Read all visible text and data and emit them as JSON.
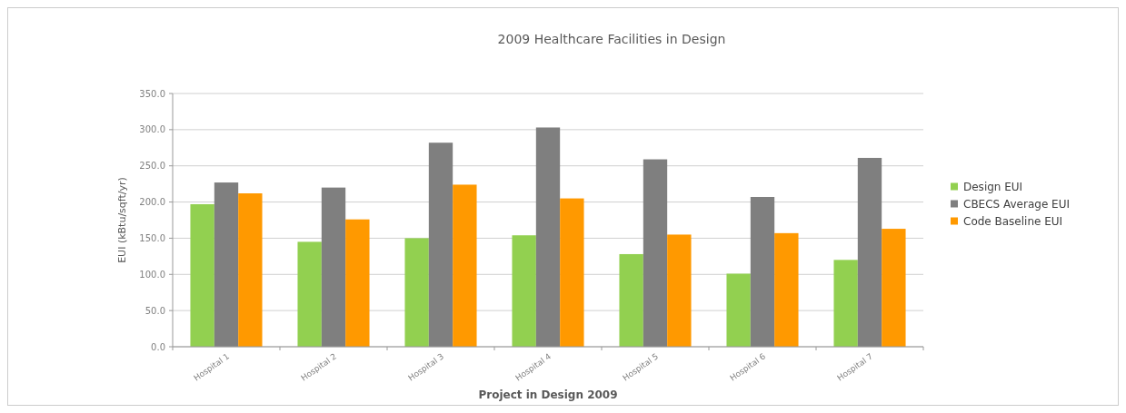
{
  "chart_data": {
    "type": "bar",
    "title": "2009 Healthcare Facilities in Design",
    "xlabel": "Project in Design 2009",
    "ylabel": "EUI (kBtu/sqft/yr)",
    "categories": [
      "Hospital 1",
      "Hospital 2",
      "Hospital 3",
      "Hospital 4",
      "Hospital 5",
      "Hospital 6",
      "Hospital 7"
    ],
    "series": [
      {
        "name": "Design EUI",
        "color": "#92d050",
        "values": [
          197,
          145,
          150,
          154,
          128,
          101,
          120
        ]
      },
      {
        "name": "CBECS Average EUI",
        "color": "#7f7f7f",
        "values": [
          227,
          220,
          282,
          303,
          259,
          207,
          261
        ]
      },
      {
        "name": "Code Baseline EUI",
        "color": "#ff9900",
        "values": [
          212,
          176,
          224,
          205,
          155,
          157,
          163
        ]
      }
    ],
    "ylim": [
      0,
      350
    ],
    "yticks": [
      {
        "value": 0,
        "label": "0.0"
      },
      {
        "value": 50,
        "label": "50.0"
      },
      {
        "value": 100,
        "label": "100.0"
      },
      {
        "value": 150,
        "label": "150.0"
      },
      {
        "value": 200,
        "label": "200.0"
      },
      {
        "value": 250,
        "label": "250.0"
      },
      {
        "value": 300,
        "label": "300.0"
      },
      {
        "value": 350,
        "label": "350.0"
      }
    ],
    "grid": "y",
    "legend": "right"
  }
}
